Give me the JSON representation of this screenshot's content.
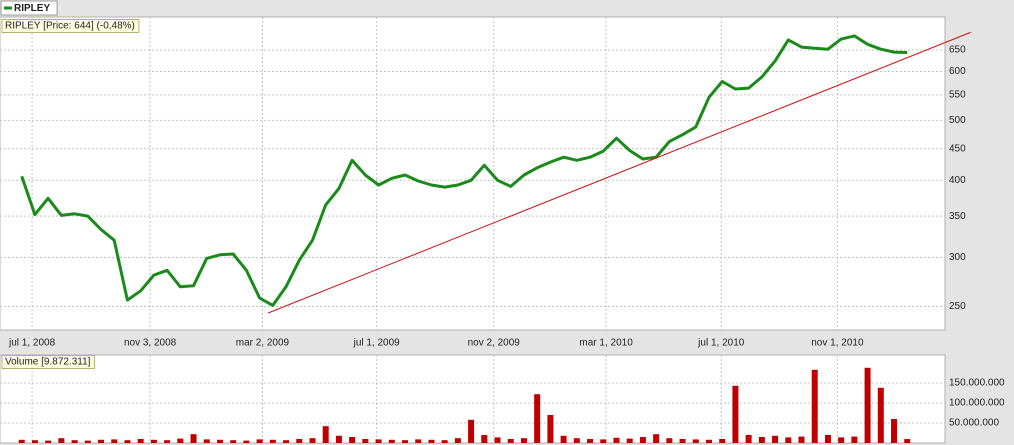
{
  "chart_data": [
    {
      "type": "line",
      "label": "RIPLEY [Price: 644] (-0,48%)",
      "legend": "top-left",
      "log_scale": true,
      "grid": true,
      "x": [
        "2008-06-20",
        "2008-07-04",
        "2008-07-18",
        "2008-08-01",
        "2008-08-15",
        "2008-08-29",
        "2008-09-12",
        "2008-09-26",
        "2008-10-10",
        "2008-10-24",
        "2008-11-07",
        "2008-11-21",
        "2008-12-05",
        "2008-12-19",
        "2009-01-02",
        "2009-01-16",
        "2009-01-30",
        "2009-02-13",
        "2009-02-27",
        "2009-03-13",
        "2009-03-27",
        "2009-04-10",
        "2009-04-24",
        "2009-05-08",
        "2009-05-22",
        "2009-06-05",
        "2009-06-19",
        "2009-07-03",
        "2009-07-17",
        "2009-07-31",
        "2009-08-14",
        "2009-08-28",
        "2009-09-11",
        "2009-09-25",
        "2009-10-09",
        "2009-10-23",
        "2009-11-06",
        "2009-11-20",
        "2009-12-04",
        "2009-12-18",
        "2010-01-01",
        "2010-01-15",
        "2010-01-29",
        "2010-02-12",
        "2010-02-26",
        "2010-03-12",
        "2010-03-26",
        "2010-04-09",
        "2010-04-23",
        "2010-05-07",
        "2010-05-21",
        "2010-06-04",
        "2010-06-18",
        "2010-07-02",
        "2010-07-16",
        "2010-07-30",
        "2010-08-13",
        "2010-08-27",
        "2010-09-10",
        "2010-09-24",
        "2010-10-08",
        "2010-10-22",
        "2010-11-05",
        "2010-11-19",
        "2010-12-03",
        "2010-12-17",
        "2010-12-31",
        "2011-01-14"
      ],
      "series": [
        {
          "name": "RIPLEY",
          "color": "#1a8a1a",
          "values": [
            406,
            352,
            374,
            351,
            353,
            350,
            333,
            320,
            256,
            265,
            281,
            286,
            269,
            270,
            299,
            303,
            304,
            286,
            258,
            251,
            269,
            297,
            320,
            365,
            388,
            431,
            408,
            393,
            403,
            408,
            399,
            393,
            390,
            393,
            400,
            423,
            400,
            391,
            408,
            419,
            428,
            436,
            431,
            436,
            446,
            468,
            447,
            433,
            436,
            462,
            474,
            488,
            545,
            578,
            562,
            564,
            588,
            624,
            675,
            657,
            654,
            652,
            677,
            685,
            664,
            652,
            645,
            644
          ]
        }
      ],
      "trendline": {
        "color": "#d01010",
        "x": [
          "2009-03-08",
          "2011-03-22"
        ],
        "values": [
          244,
          694
        ]
      },
      "xlim": [
        "2008-05-28",
        "2011-02-23"
      ],
      "xticks": [
        {
          "value": "2008-07-01",
          "label": "jul 1, 2008"
        },
        {
          "value": "2008-11-03",
          "label": "nov 3, 2008"
        },
        {
          "value": "2009-03-02",
          "label": "mar 2, 2009"
        },
        {
          "value": "2009-07-01",
          "label": "jul 1, 2009"
        },
        {
          "value": "2009-11-02",
          "label": "nov 2, 2009"
        },
        {
          "value": "2010-03-01",
          "label": "mar 1, 2010"
        },
        {
          "value": "2010-07-01",
          "label": "jul 1, 2010"
        },
        {
          "value": "2010-11-01",
          "label": "nov 1, 2010"
        }
      ],
      "ylim": [
        229,
        735
      ],
      "yticks": [
        250,
        300,
        350,
        400,
        450,
        500,
        550,
        600,
        650
      ]
    },
    {
      "type": "bar",
      "label": "Volume [9.872.311]",
      "grid": true,
      "color": "#c00000",
      "x": [
        "2008-06-20",
        "2008-07-04",
        "2008-07-18",
        "2008-08-01",
        "2008-08-15",
        "2008-08-29",
        "2008-09-12",
        "2008-09-26",
        "2008-10-10",
        "2008-10-24",
        "2008-11-07",
        "2008-11-21",
        "2008-12-05",
        "2008-12-19",
        "2009-01-02",
        "2009-01-16",
        "2009-01-30",
        "2009-02-13",
        "2009-02-27",
        "2009-03-13",
        "2009-03-27",
        "2009-04-10",
        "2009-04-24",
        "2009-05-08",
        "2009-05-22",
        "2009-06-05",
        "2009-06-19",
        "2009-07-03",
        "2009-07-17",
        "2009-07-31",
        "2009-08-14",
        "2009-08-28",
        "2009-09-11",
        "2009-09-25",
        "2009-10-09",
        "2009-10-23",
        "2009-11-06",
        "2009-11-20",
        "2009-12-04",
        "2009-12-18",
        "2010-01-01",
        "2010-01-15",
        "2010-01-29",
        "2010-02-12",
        "2010-02-26",
        "2010-03-12",
        "2010-03-26",
        "2010-04-09",
        "2010-04-23",
        "2010-05-07",
        "2010-05-21",
        "2010-06-04",
        "2010-06-18",
        "2010-07-02",
        "2010-07-16",
        "2010-07-30",
        "2010-08-13",
        "2010-08-27",
        "2010-09-10",
        "2010-09-24",
        "2010-10-08",
        "2010-10-22",
        "2010-11-05",
        "2010-11-19",
        "2010-12-03",
        "2010-12-17",
        "2010-12-31",
        "2011-01-14"
      ],
      "values": [
        8000000,
        7000000,
        6000000,
        12000000,
        7000000,
        6000000,
        8000000,
        9000000,
        7000000,
        10000000,
        8000000,
        7000000,
        11000000,
        22000000,
        9000000,
        8000000,
        7000000,
        6000000,
        9000000,
        8000000,
        7000000,
        10000000,
        12000000,
        42000000,
        18000000,
        15000000,
        10000000,
        9000000,
        8000000,
        7000000,
        9000000,
        8000000,
        7000000,
        12000000,
        58000000,
        20000000,
        14000000,
        10000000,
        12000000,
        122000000,
        70000000,
        18000000,
        12000000,
        10000000,
        9000000,
        13000000,
        11000000,
        15000000,
        22000000,
        12000000,
        10000000,
        9000000,
        8000000,
        10000000,
        143000000,
        20000000,
        15000000,
        18000000,
        14000000,
        16000000,
        183000000,
        20000000,
        14000000,
        16000000,
        188000000,
        138000000,
        60000000,
        9872311
      ],
      "xlim": [
        "2008-05-28",
        "2011-02-23"
      ],
      "ylim": [
        0,
        220000000
      ],
      "yticks": [
        {
          "value": 50000000,
          "label": "50.000.000"
        },
        {
          "value": 100000000,
          "label": "100.000.000"
        },
        {
          "value": 150000000,
          "label": "150.000.000"
        }
      ]
    }
  ]
}
